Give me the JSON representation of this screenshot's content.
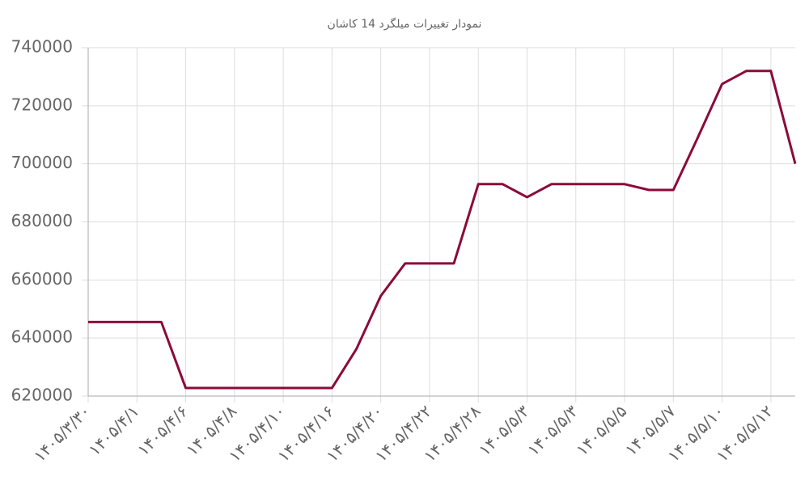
{
  "chart_data": {
    "type": "line",
    "title": "نمودار تغییرات میلگرد 14 کاشان",
    "categories": [
      "۱۴۰۵/۳/۳۰",
      null,
      "۱۴۰۵/۴/۱",
      null,
      "۱۴۰۵/۴/۶",
      null,
      "۱۴۰۵/۴/۸",
      null,
      "۱۴۰۵/۴/۱۰",
      null,
      "۱۴۰۵/۴/۱۶",
      null,
      "۱۴۰۵/۴/۲۰",
      null,
      "۱۴۰۵/۴/۲۲",
      null,
      "۱۴۰۵/۴/۲۸",
      null,
      "۱۴۰۵/۵/۳",
      null,
      "۱۴۰۵/۵/۳",
      null,
      "۱۴۰۵/۵/۵",
      null,
      "۱۴۰۵/۵/۷",
      null,
      "۱۴۰۵/۵/۱۰",
      null,
      "۱۴۰۵/۵/۱۲",
      null
    ],
    "values": [
      645500,
      645500,
      645500,
      645500,
      622800,
      622800,
      622800,
      622800,
      622800,
      622800,
      622800,
      636200,
      654500,
      665700,
      665700,
      665700,
      693000,
      693000,
      688500,
      693000,
      693000,
      693000,
      693000,
      691000,
      691000,
      709000,
      727500,
      732000,
      732000,
      700000
    ],
    "color": "#8b0a3a",
    "ylim": [
      620000,
      740000
    ],
    "yticks": [
      620000,
      640000,
      660000,
      680000,
      700000,
      720000,
      740000
    ],
    "grid": true
  }
}
